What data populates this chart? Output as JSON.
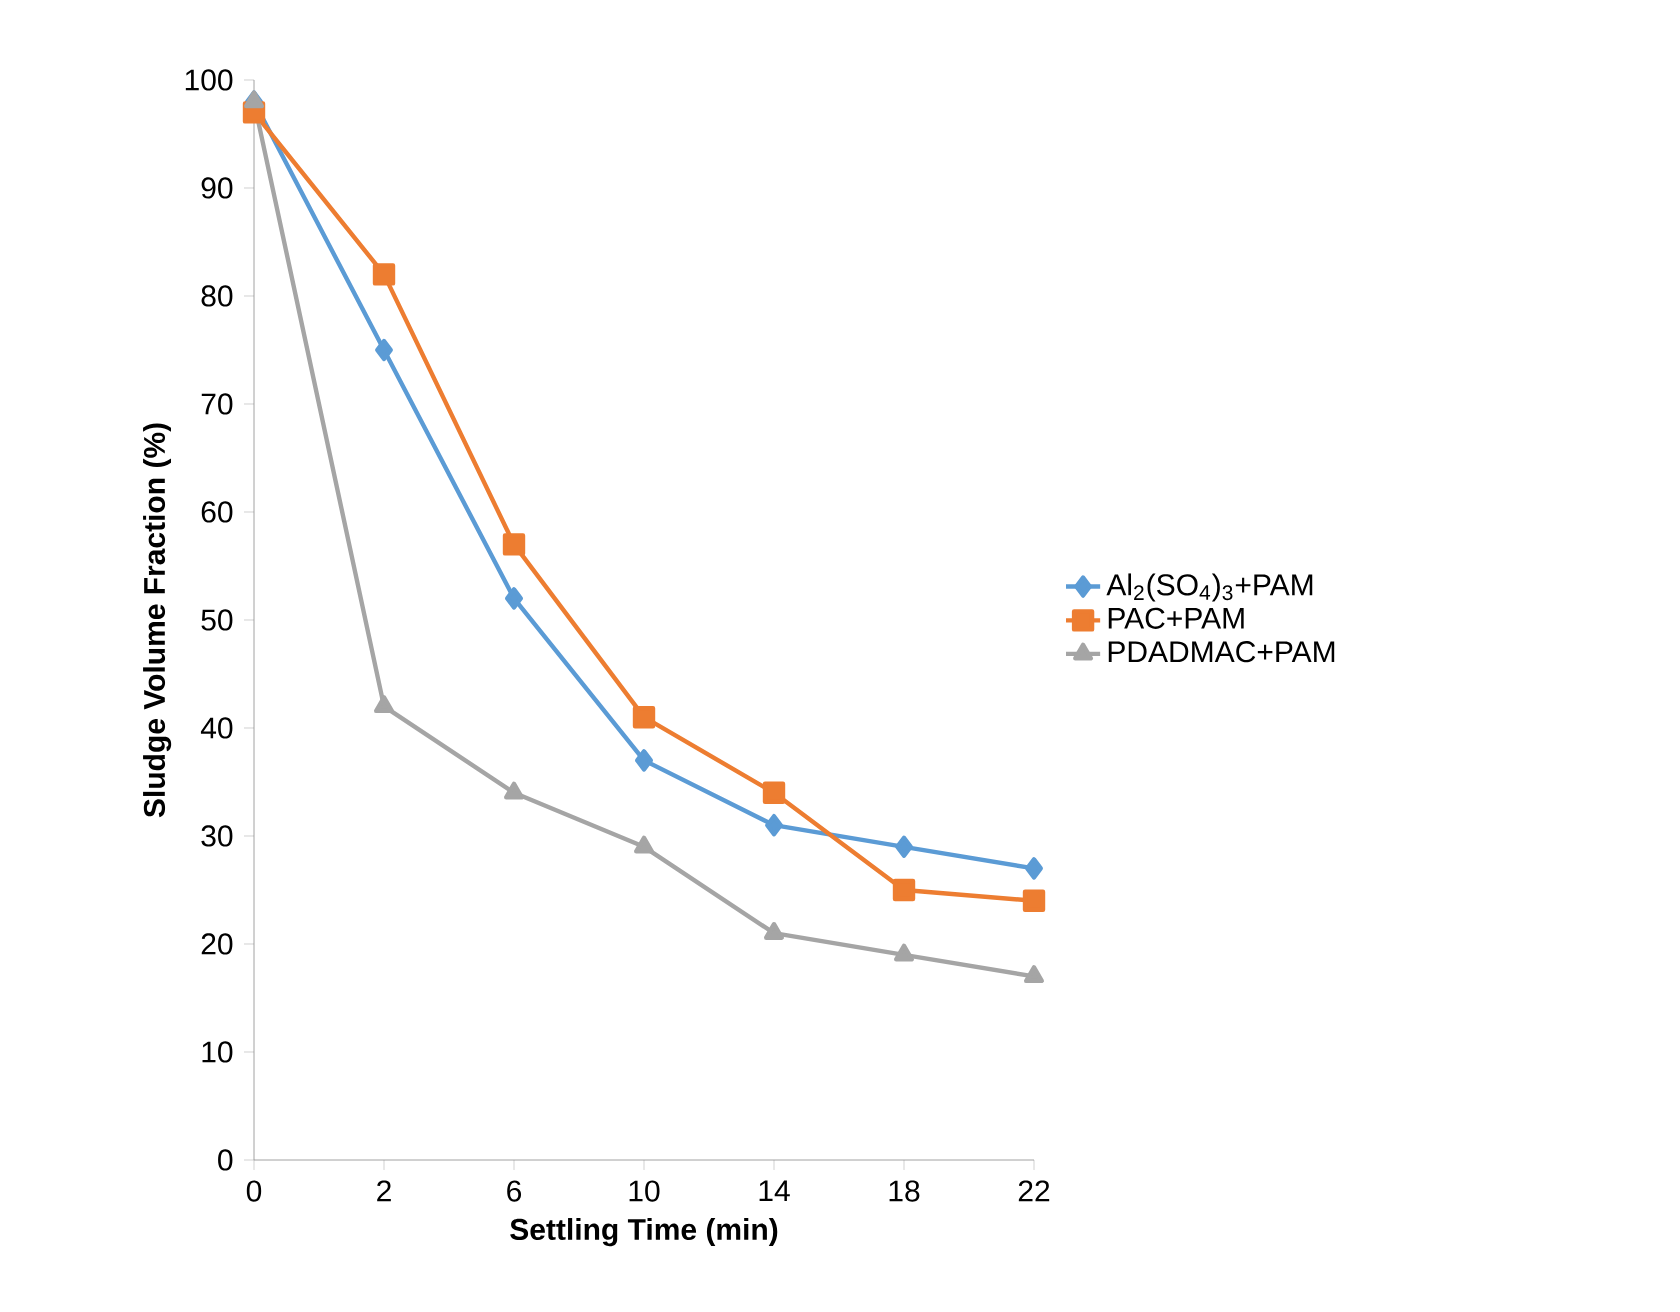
{
  "chart_data": {
    "type": "line",
    "xlabel": "Settling Time (min)",
    "ylabel": "Sludge Volume Fraction (%)",
    "categories": [
      "0",
      "2",
      "6",
      "10",
      "14",
      "18",
      "22"
    ],
    "ylim": [
      0,
      100
    ],
    "yticks": [
      0,
      10,
      20,
      30,
      40,
      50,
      60,
      70,
      80,
      90,
      100
    ],
    "grid": false,
    "legend": "right",
    "line_style": "solid",
    "series": [
      {
        "name": "Al$_{2}$(SO$_{4}$)$_{3}$+PAM",
        "color": "#5b9bd5",
        "marker": "diamond",
        "values": [
          98,
          75,
          52,
          37,
          31,
          29,
          27
        ]
      },
      {
        "name": "PAC+PAM",
        "color": "#ed7d31",
        "marker": "square",
        "values": [
          97,
          82,
          57,
          41,
          34,
          25,
          24
        ]
      },
      {
        "name": "PDADMAC+PAM",
        "color": "#a5a5a5",
        "marker": "triangle",
        "values": [
          98,
          42,
          34,
          29,
          21,
          19,
          17
        ]
      }
    ]
  }
}
